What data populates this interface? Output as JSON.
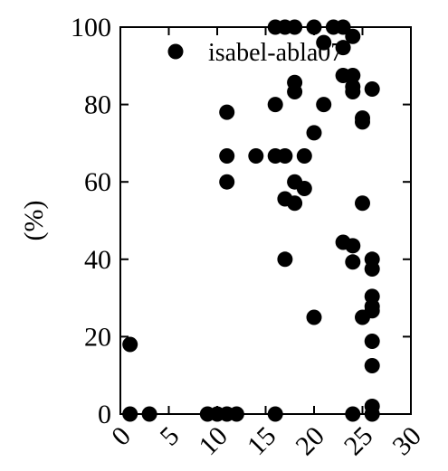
{
  "chart_data": {
    "type": "scatter",
    "title": "",
    "xlabel": "",
    "ylabel": "(%)",
    "xlim": [
      0,
      30
    ],
    "ylim": [
      0,
      100
    ],
    "xticks": [
      0,
      5,
      10,
      15,
      20,
      25,
      30
    ],
    "yticks": [
      0,
      20,
      40,
      60,
      80,
      100
    ],
    "legend_position": "top-right",
    "grid": false,
    "series": [
      {
        "name": "isabel-abla07",
        "color": "#000000",
        "points": [
          {
            "x": 1,
            "y": 18
          },
          {
            "x": 1,
            "y": 0
          },
          {
            "x": 3,
            "y": 0
          },
          {
            "x": 9,
            "y": 0
          },
          {
            "x": 10,
            "y": 0
          },
          {
            "x": 11,
            "y": 0
          },
          {
            "x": 12,
            "y": 0
          },
          {
            "x": 11,
            "y": 78
          },
          {
            "x": 11,
            "y": 66.7
          },
          {
            "x": 11,
            "y": 60
          },
          {
            "x": 14,
            "y": 66.7
          },
          {
            "x": 16,
            "y": 66.7
          },
          {
            "x": 16,
            "y": 80
          },
          {
            "x": 16,
            "y": 0
          },
          {
            "x": 16,
            "y": 100
          },
          {
            "x": 17,
            "y": 100
          },
          {
            "x": 17,
            "y": 66.7
          },
          {
            "x": 17,
            "y": 55.6
          },
          {
            "x": 17,
            "y": 40
          },
          {
            "x": 18,
            "y": 100
          },
          {
            "x": 18,
            "y": 85.7
          },
          {
            "x": 18,
            "y": 83.3
          },
          {
            "x": 18,
            "y": 60
          },
          {
            "x": 18,
            "y": 54.5
          },
          {
            "x": 19,
            "y": 66.7
          },
          {
            "x": 19,
            "y": 58.3
          },
          {
            "x": 20,
            "y": 100
          },
          {
            "x": 20,
            "y": 72.7
          },
          {
            "x": 20,
            "y": 25
          },
          {
            "x": 21,
            "y": 96
          },
          {
            "x": 21,
            "y": 80
          },
          {
            "x": 22,
            "y": 100
          },
          {
            "x": 23,
            "y": 100
          },
          {
            "x": 23,
            "y": 94.7
          },
          {
            "x": 23,
            "y": 87.5
          },
          {
            "x": 23,
            "y": 44.4
          },
          {
            "x": 24,
            "y": 97.6
          },
          {
            "x": 24,
            "y": 87.5
          },
          {
            "x": 24,
            "y": 84.6
          },
          {
            "x": 24,
            "y": 83.3
          },
          {
            "x": 24,
            "y": 43.5
          },
          {
            "x": 24,
            "y": 39.3
          },
          {
            "x": 24,
            "y": 0
          },
          {
            "x": 25,
            "y": 76.5
          },
          {
            "x": 25,
            "y": 75.5
          },
          {
            "x": 25,
            "y": 54.5
          },
          {
            "x": 25,
            "y": 25
          },
          {
            "x": 26,
            "y": 84
          },
          {
            "x": 26,
            "y": 40
          },
          {
            "x": 26,
            "y": 37.5
          },
          {
            "x": 26,
            "y": 30.4
          },
          {
            "x": 26,
            "y": 27.8
          },
          {
            "x": 26,
            "y": 26.7
          },
          {
            "x": 26,
            "y": 18.8
          },
          {
            "x": 26,
            "y": 12.5
          },
          {
            "x": 26,
            "y": 2
          },
          {
            "x": 26,
            "y": 0
          }
        ]
      }
    ]
  }
}
